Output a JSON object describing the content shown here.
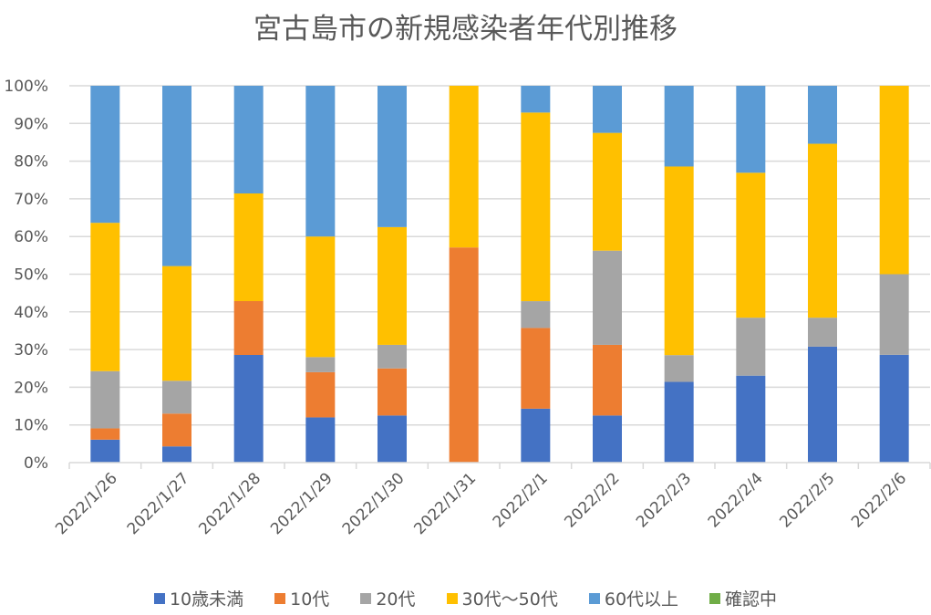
{
  "chart_data": {
    "type": "bar",
    "stacked": "percent",
    "title": "宮古島市の新規感染者年代別推移",
    "xlabel": "",
    "ylabel": "",
    "ylim": [
      0,
      100
    ],
    "y_ticks": [
      "0%",
      "10%",
      "20%",
      "30%",
      "40%",
      "50%",
      "60%",
      "70%",
      "80%",
      "90%",
      "100%"
    ],
    "grid": true,
    "legend_position": "bottom",
    "categories": [
      "2022/1/26",
      "2022/1/27",
      "2022/1/28",
      "2022/1/29",
      "2022/1/30",
      "2022/1/31",
      "2022/2/1",
      "2022/2/2",
      "2022/2/3",
      "2022/2/4",
      "2022/2/5",
      "2022/2/6"
    ],
    "series": [
      {
        "name": "10歳未満",
        "color": "#4472C4",
        "values": [
          6.1,
          4.3,
          28.6,
          12.0,
          12.5,
          0.0,
          14.3,
          12.5,
          21.4,
          23.1,
          30.8,
          28.6
        ]
      },
      {
        "name": "10代",
        "color": "#ED7D31",
        "values": [
          3.0,
          8.7,
          14.3,
          12.0,
          12.5,
          57.1,
          21.4,
          18.75,
          0.0,
          0.0,
          0.0,
          0.0
        ]
      },
      {
        "name": "20代",
        "color": "#A5A5A5",
        "values": [
          15.2,
          8.7,
          0.0,
          4.0,
          6.25,
          0.0,
          7.1,
          25.0,
          7.1,
          15.4,
          7.7,
          21.4
        ]
      },
      {
        "name": "30代～50代",
        "color": "#FFC000",
        "values": [
          39.4,
          30.4,
          28.6,
          32.0,
          31.25,
          42.9,
          50.0,
          31.25,
          50.0,
          38.5,
          46.2,
          50.0
        ]
      },
      {
        "name": "60代以上",
        "color": "#5B9BD5",
        "values": [
          36.4,
          47.8,
          28.6,
          40.0,
          37.5,
          0.0,
          7.1,
          12.5,
          21.4,
          23.1,
          15.4,
          0.0
        ]
      },
      {
        "name": "確認中",
        "color": "#70AD47",
        "values": [
          0,
          0,
          0,
          0,
          0,
          0,
          0,
          0,
          0,
          0,
          0,
          0
        ]
      }
    ]
  }
}
